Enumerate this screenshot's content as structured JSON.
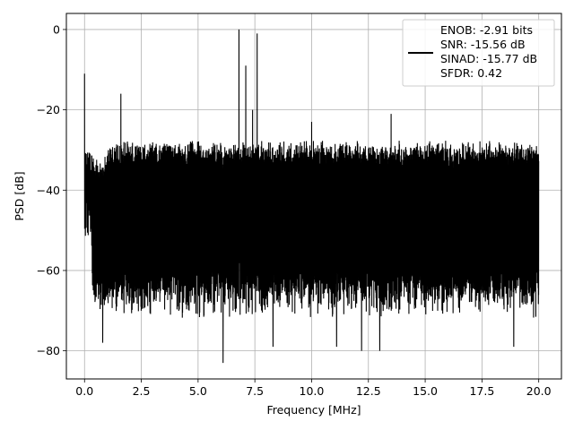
{
  "chart_data": {
    "type": "line",
    "title": "",
    "xlabel": "Frequency [MHz]",
    "ylabel": "PSD [dB]",
    "xlim": [
      -0.8,
      21.0
    ],
    "ylim": [
      -87,
      4
    ],
    "xticks": [
      0.0,
      2.5,
      5.0,
      7.5,
      10.0,
      12.5,
      15.0,
      17.5,
      20.0
    ],
    "xtick_labels": [
      "0.0",
      "2.5",
      "5.0",
      "7.5",
      "10.0",
      "12.5",
      "15.0",
      "17.5",
      "20.0"
    ],
    "yticks": [
      0,
      -20,
      -40,
      -60,
      -80
    ],
    "ytick_labels": [
      "0",
      "−20",
      "−40",
      "−60",
      "−80"
    ],
    "grid": true,
    "legend_position": "top-right",
    "series": [
      {
        "color": "#000000",
        "x_range": [
          0,
          20
        ],
        "noise_floor_upper": -29,
        "noise_floor_lower": -62,
        "spikes": [
          {
            "x": 0.0,
            "y": -11
          },
          {
            "x": 1.6,
            "y": -16
          },
          {
            "x": 6.8,
            "y": 0
          },
          {
            "x": 7.1,
            "y": -9
          },
          {
            "x": 7.6,
            "y": -1
          },
          {
            "x": 7.4,
            "y": -20
          },
          {
            "x": 10.0,
            "y": -23
          },
          {
            "x": 13.5,
            "y": -21
          }
        ],
        "dips": [
          {
            "x": 6.1,
            "y": -83
          },
          {
            "x": 13.0,
            "y": -80
          },
          {
            "x": 11.1,
            "y": -79
          },
          {
            "x": 12.2,
            "y": -80
          },
          {
            "x": 0.8,
            "y": -78
          },
          {
            "x": 18.9,
            "y": -79
          },
          {
            "x": 8.3,
            "y": -79
          }
        ]
      }
    ],
    "legend": {
      "lines": [
        "ENOB: -2.91 bits",
        "SNR: -15.56 dB",
        "SINAD: -15.77 dB",
        "SFDR: 0.42"
      ]
    }
  }
}
